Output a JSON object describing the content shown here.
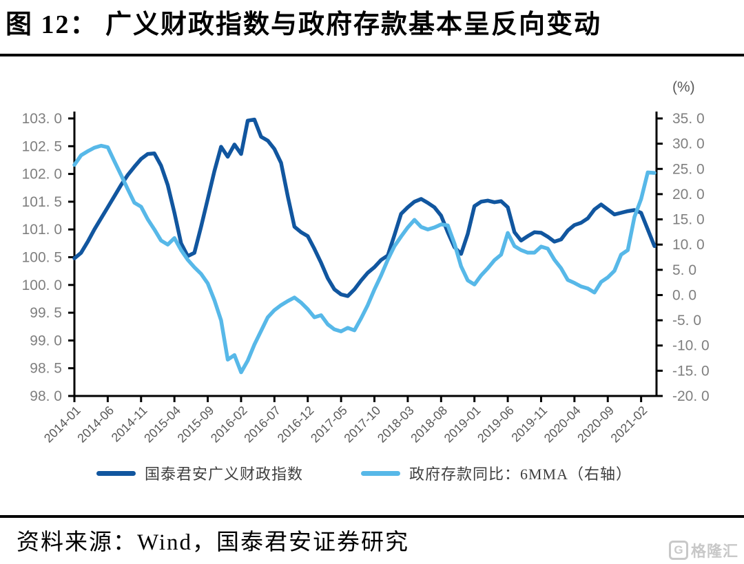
{
  "header": {
    "title": "图 12： 广义财政指数与政府存款基本呈反向变动"
  },
  "footer": {
    "source": "资料来源：Wind，国泰君安证券研究",
    "logo_icon": "G",
    "logo_text": "格隆汇"
  },
  "legend": [
    {
      "label": "国泰君安广义财政指数",
      "color": "#11569f"
    },
    {
      "label": "政府存款同比：6MMA（右轴）",
      "color": "#57b8e8"
    }
  ],
  "chart_data": {
    "type": "line",
    "title": "广义财政指数与政府存款基本呈反向变动",
    "grid": false,
    "legend_position": "bottom",
    "x_tick_labels": [
      "2014-01",
      "2014-06",
      "2014-11",
      "2015-04",
      "2015-09",
      "2016-02",
      "2016-07",
      "2016-12",
      "2017-05",
      "2017-10",
      "2018-03",
      "2018-08",
      "2019-01",
      "2019-06",
      "2019-11",
      "2020-04",
      "2020-09",
      "2021-02"
    ],
    "x_tick_month_stride": 5,
    "left_axis": {
      "range": [
        98.0,
        103.0
      ],
      "step": 0.5,
      "tick_labels": [
        "103. 0",
        "102. 5",
        "102. 0",
        "101. 5",
        "101. 0",
        "100. 5",
        "100. 0",
        "99. 5",
        "99. 0",
        "98. 5",
        "98. 0"
      ]
    },
    "right_axis": {
      "range": [
        -20.0,
        35.0
      ],
      "step": 5.0,
      "unit": "(%)",
      "tick_labels": [
        "35. 0",
        "30. 0",
        "25. 0",
        "20. 0",
        "15. 0",
        "10. 0",
        "5. 0",
        "0. 0",
        "-5. 0",
        "-10. 0",
        "-15. 0",
        "-20. 0"
      ]
    },
    "months": [
      "2014-01",
      "2014-02",
      "2014-03",
      "2014-04",
      "2014-05",
      "2014-06",
      "2014-07",
      "2014-08",
      "2014-09",
      "2014-10",
      "2014-11",
      "2014-12",
      "2015-01",
      "2015-02",
      "2015-03",
      "2015-04",
      "2015-05",
      "2015-06",
      "2015-07",
      "2015-08",
      "2015-09",
      "2015-10",
      "2015-11",
      "2015-12",
      "2016-01",
      "2016-02",
      "2016-03",
      "2016-04",
      "2016-05",
      "2016-06",
      "2016-07",
      "2016-08",
      "2016-09",
      "2016-10",
      "2016-11",
      "2016-12",
      "2017-01",
      "2017-02",
      "2017-03",
      "2017-04",
      "2017-05",
      "2017-06",
      "2017-07",
      "2017-08",
      "2017-09",
      "2017-10",
      "2017-11",
      "2017-12",
      "2018-01",
      "2018-02",
      "2018-03",
      "2018-04",
      "2018-05",
      "2018-06",
      "2018-07",
      "2018-08",
      "2018-09",
      "2018-10",
      "2018-11",
      "2018-12",
      "2019-01",
      "2019-02",
      "2019-03",
      "2019-04",
      "2019-05",
      "2019-06",
      "2019-07",
      "2019-08",
      "2019-09",
      "2019-10",
      "2019-11",
      "2019-12",
      "2020-01",
      "2020-02",
      "2020-03",
      "2020-04",
      "2020-05",
      "2020-06",
      "2020-07",
      "2020-08",
      "2020-09",
      "2020-10",
      "2020-11",
      "2020-12",
      "2021-01",
      "2021-02",
      "2021-03",
      "2021-04"
    ],
    "series": [
      {
        "name": "国泰君安广义财政指数",
        "axis": "left",
        "color": "#11569f",
        "values": [
          100.48,
          100.58,
          100.78,
          101.0,
          101.2,
          101.4,
          101.6,
          101.8,
          101.98,
          102.13,
          102.27,
          102.36,
          102.37,
          102.15,
          101.8,
          101.3,
          100.75,
          100.52,
          100.58,
          101.05,
          101.55,
          102.05,
          102.49,
          102.31,
          102.53,
          102.36,
          102.96,
          102.98,
          102.67,
          102.6,
          102.45,
          102.2,
          101.6,
          101.05,
          100.95,
          100.88,
          100.65,
          100.4,
          100.12,
          99.92,
          99.83,
          99.8,
          99.92,
          100.08,
          100.22,
          100.32,
          100.45,
          100.53,
          100.9,
          101.28,
          101.4,
          101.5,
          101.55,
          101.48,
          101.4,
          101.25,
          100.95,
          100.68,
          100.56,
          100.92,
          101.42,
          101.5,
          101.52,
          101.49,
          101.51,
          101.4,
          100.95,
          100.8,
          100.88,
          100.95,
          100.94,
          100.87,
          100.78,
          100.82,
          100.98,
          101.08,
          101.12,
          101.2,
          101.36,
          101.45,
          101.36,
          101.27,
          101.3,
          101.33,
          101.35,
          101.3,
          101.0,
          100.7
        ]
      },
      {
        "name": "政府存款同比：6MMA（右轴）",
        "axis": "right",
        "color": "#57b8e8",
        "values": [
          25.8,
          27.7,
          28.5,
          29.2,
          29.6,
          29.3,
          26.5,
          23.8,
          21.0,
          18.3,
          17.5,
          15.0,
          13.0,
          10.8,
          10.0,
          11.3,
          8.9,
          7.0,
          5.5,
          4.2,
          2.3,
          -1.0,
          -5.0,
          -12.8,
          -11.9,
          -15.3,
          -13.0,
          -9.8,
          -7.1,
          -4.4,
          -3.0,
          -2.0,
          -1.2,
          -0.5,
          -1.5,
          -2.8,
          -4.4,
          -4.0,
          -5.8,
          -6.8,
          -7.2,
          -6.5,
          -7.0,
          -4.6,
          -2.0,
          1.1,
          3.9,
          7.0,
          9.7,
          11.6,
          13.4,
          14.9,
          13.5,
          13.0,
          13.4,
          14.0,
          13.8,
          10.2,
          5.7,
          2.9,
          2.1,
          3.9,
          5.3,
          6.9,
          8.0,
          12.3,
          9.7,
          8.9,
          8.4,
          8.4,
          9.6,
          9.2,
          7.0,
          5.3,
          3.0,
          2.4,
          1.7,
          1.3,
          0.5,
          2.6,
          3.5,
          4.8,
          8.0,
          8.9,
          15.5,
          19.0,
          24.3,
          24.2
        ]
      }
    ]
  },
  "style": {
    "axis_color": "#000000",
    "y_tick_label_color": "#7f7f7f",
    "x_tick_label_color": "#595959",
    "unit_label_color": "#595959",
    "logo_color": "#c8c8c8"
  }
}
